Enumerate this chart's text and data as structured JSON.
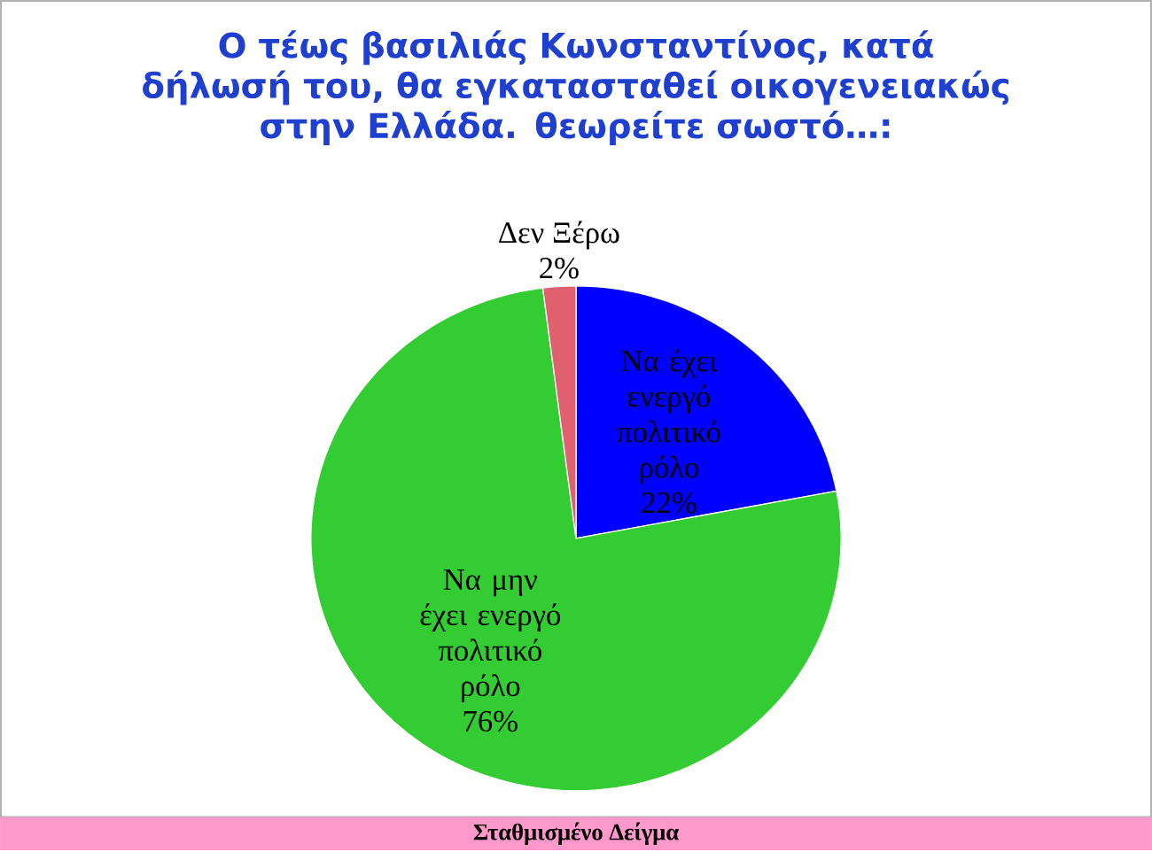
{
  "chart_data": {
    "type": "pie",
    "title": "Ο τέως βασιλιάς Κωνσταντίνος, κατά δήλωσή του, θα εγκατασταθεί οικογενειακώς στην Ελλάδα. θεωρείτε σωστό…:",
    "categories": [
      "Να έχει ενεργό πολιτικό ρόλο",
      "Να μην έχει ενεργό πολιτικό ρόλο",
      "Δεν Ξέρω"
    ],
    "values": [
      22,
      76,
      2
    ],
    "value_labels": [
      "22%",
      "76%",
      "2%"
    ],
    "colors": [
      "#0000ff",
      "#33cc33",
      "#e06070"
    ],
    "annotations": [
      "Σταθμισμένο Δείγμα"
    ]
  }
}
